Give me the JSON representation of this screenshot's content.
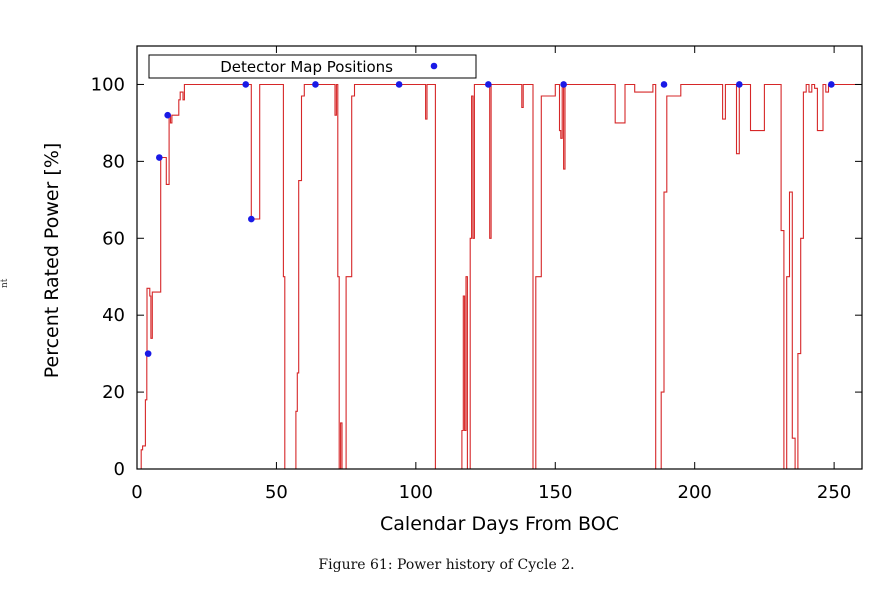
{
  "figure": {
    "caption": "Figure 61: Power history of Cycle 2.",
    "margin_text": "nt"
  },
  "chart_data": {
    "type": "line",
    "title": "",
    "xlabel": "Calendar Days From BOC",
    "ylabel": "Percent Rated Power [%]",
    "xlim": [
      0,
      260
    ],
    "ylim": [
      0,
      110
    ],
    "x_ticks": [
      0,
      50,
      100,
      150,
      200,
      250
    ],
    "y_ticks": [
      0,
      20,
      40,
      60,
      80,
      100
    ],
    "grid": false,
    "legend_position": "top-left",
    "colors": {
      "power_line": "#d62728",
      "markers": "#1a1ae6",
      "axes": "#000000"
    },
    "series": [
      {
        "kind": "step-line",
        "x": [
          0,
          1,
          1.5,
          2,
          2.5,
          3,
          3.5,
          3.6,
          4,
          4.6,
          5,
          5.5,
          6,
          6.5,
          7,
          8,
          8.5,
          9,
          10,
          10.5,
          11,
          11.5,
          12,
          12.5,
          13,
          14,
          15,
          15.5,
          16,
          16.5,
          17,
          17.5,
          18,
          20,
          25,
          30,
          35,
          38,
          40,
          40.5,
          41,
          41.5,
          43,
          44,
          45,
          47,
          50,
          52,
          52.5,
          53,
          56,
          57,
          57.5,
          58,
          59,
          60,
          62,
          65,
          68,
          70,
          71,
          71.5,
          72,
          72.5,
          73,
          73.5,
          74,
          75,
          77,
          78,
          78.5,
          80,
          85,
          90,
          95,
          100,
          103,
          103.5,
          104,
          106,
          107,
          116,
          116.5,
          117,
          117.5,
          118,
          118.5,
          119,
          119.5,
          120,
          120.5,
          121,
          122,
          125,
          126,
          126.5,
          127,
          128,
          130,
          132,
          138,
          138.5,
          139,
          140,
          141,
          142,
          143,
          145,
          150,
          151,
          151.5,
          152,
          152.5,
          153,
          153.5,
          154,
          155,
          160,
          165,
          170,
          171,
          171.5,
          175,
          178,
          178.5,
          185,
          186,
          187,
          188,
          189,
          190,
          195,
          200,
          203,
          203.5,
          210,
          211,
          211.5,
          215,
          216,
          216.5,
          217,
          220,
          225,
          228,
          229,
          230,
          231,
          232,
          233,
          234,
          235,
          236,
          237,
          238,
          239,
          240,
          241,
          242,
          243,
          244,
          245,
          246,
          247,
          248,
          249,
          250,
          255,
          260
        ],
        "y": [
          0,
          0,
          5,
          6,
          6,
          18,
          30,
          47,
          47,
          45,
          34,
          46,
          46,
          46,
          46,
          46,
          81,
          81,
          81,
          74,
          74,
          92,
          90,
          92,
          92,
          92,
          96,
          98,
          98,
          96,
          100,
          100,
          100,
          100,
          100,
          100,
          100,
          100,
          100,
          100,
          65,
          65,
          65,
          100,
          100,
          100,
          100,
          100,
          50,
          0,
          0,
          15,
          25,
          75,
          97,
          100,
          100,
          100,
          100,
          100,
          92,
          100,
          50,
          0,
          12,
          0,
          0,
          50,
          97,
          100,
          100,
          100,
          100,
          100,
          100,
          100,
          100,
          91,
          100,
          100,
          0,
          0,
          10,
          45,
          10,
          50,
          0,
          0,
          60,
          97,
          60,
          100,
          100,
          100,
          100,
          60,
          100,
          100,
          100,
          100,
          94,
          100,
          100,
          100,
          100,
          0,
          50,
          97,
          100,
          100,
          88,
          86,
          100,
          78,
          100,
          100,
          100,
          100,
          100,
          100,
          100,
          90,
          100,
          100,
          98,
          100,
          0,
          0,
          20,
          72,
          97,
          100,
          100,
          100,
          100,
          91,
          100,
          100,
          82,
          100,
          100,
          100,
          88,
          100,
          100,
          100,
          100,
          62,
          0,
          50,
          72,
          8,
          0,
          30,
          60,
          98,
          100,
          98,
          100,
          99,
          88,
          88,
          100,
          98,
          100,
          100,
          100,
          100,
          100
        ]
      },
      {
        "name": "Detector Map Positions",
        "kind": "points",
        "x": [
          4,
          8,
          11,
          39,
          41,
          64,
          94,
          126,
          153,
          189,
          216,
          249
        ],
        "y": [
          30,
          81,
          92,
          100,
          65,
          100,
          100,
          100,
          100,
          100,
          100,
          100
        ]
      }
    ]
  }
}
